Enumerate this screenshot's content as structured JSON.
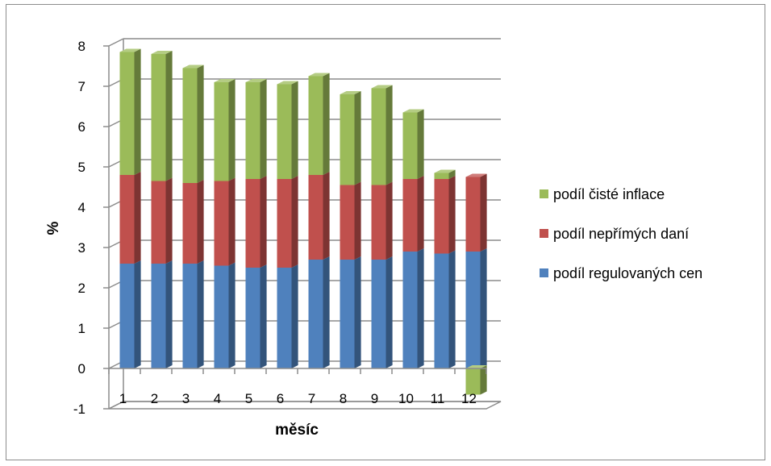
{
  "chart_data": {
    "type": "bar",
    "stacked": true,
    "three_d": true,
    "categories": [
      "1",
      "2",
      "3",
      "4",
      "5",
      "6",
      "7",
      "8",
      "9",
      "10",
      "11",
      "12"
    ],
    "series": [
      {
        "name": "podíl regulovaných cen",
        "color": "#4f81bd",
        "values": [
          2.6,
          2.6,
          2.6,
          2.55,
          2.5,
          2.5,
          2.7,
          2.7,
          2.7,
          2.9,
          2.85,
          2.9
        ]
      },
      {
        "name": "podíl nepřímých daní",
        "color": "#c0504d",
        "values": [
          2.2,
          2.05,
          2.0,
          2.1,
          2.2,
          2.2,
          2.1,
          1.85,
          1.85,
          1.8,
          1.85,
          1.85
        ]
      },
      {
        "name": "podíl čisté inflace",
        "color": "#9bbb59",
        "values": [
          3.05,
          3.15,
          2.85,
          2.45,
          2.4,
          2.35,
          2.45,
          2.25,
          2.4,
          1.65,
          0.15,
          -0.65
        ]
      }
    ],
    "xlabel": "měsíc",
    "ylabel": "%",
    "ylim": [
      -1,
      8
    ],
    "yticks": [
      "-1",
      "0",
      "1",
      "2",
      "3",
      "4",
      "5",
      "6",
      "7",
      "8"
    ],
    "grid": true,
    "legend": "right"
  }
}
